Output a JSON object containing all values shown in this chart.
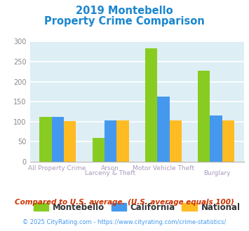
{
  "title_line1": "2019 Montebello",
  "title_line2": "Property Crime Comparison",
  "title_color": "#1a86d0",
  "categories_line1": [
    "All Property Crime",
    "Arson",
    "Motor Vehicle Theft",
    ""
  ],
  "categories_line2": [
    "",
    "Larceny & Theft",
    "",
    "Burglary"
  ],
  "montebello": [
    112,
    60,
    283,
    228
  ],
  "california": [
    112,
    103,
    163,
    115
  ],
  "national": [
    102,
    103,
    103,
    103
  ],
  "color_montebello": "#88cc22",
  "color_california": "#4499ee",
  "color_national": "#ffbb22",
  "ylim": [
    0,
    300
  ],
  "yticks": [
    0,
    50,
    100,
    150,
    200,
    250,
    300
  ],
  "bg_color": "#ddeef5",
  "legend_labels": [
    "Montebello",
    "California",
    "National"
  ],
  "footnote1": "Compared to U.S. average. (U.S. average equals 100)",
  "footnote2": "© 2025 CityRating.com - https://www.cityrating.com/crime-statistics/",
  "footnote1_color": "#cc3300",
  "footnote2_color": "#4499ee",
  "label_color": "#aa99bb",
  "bar_width": 0.23
}
